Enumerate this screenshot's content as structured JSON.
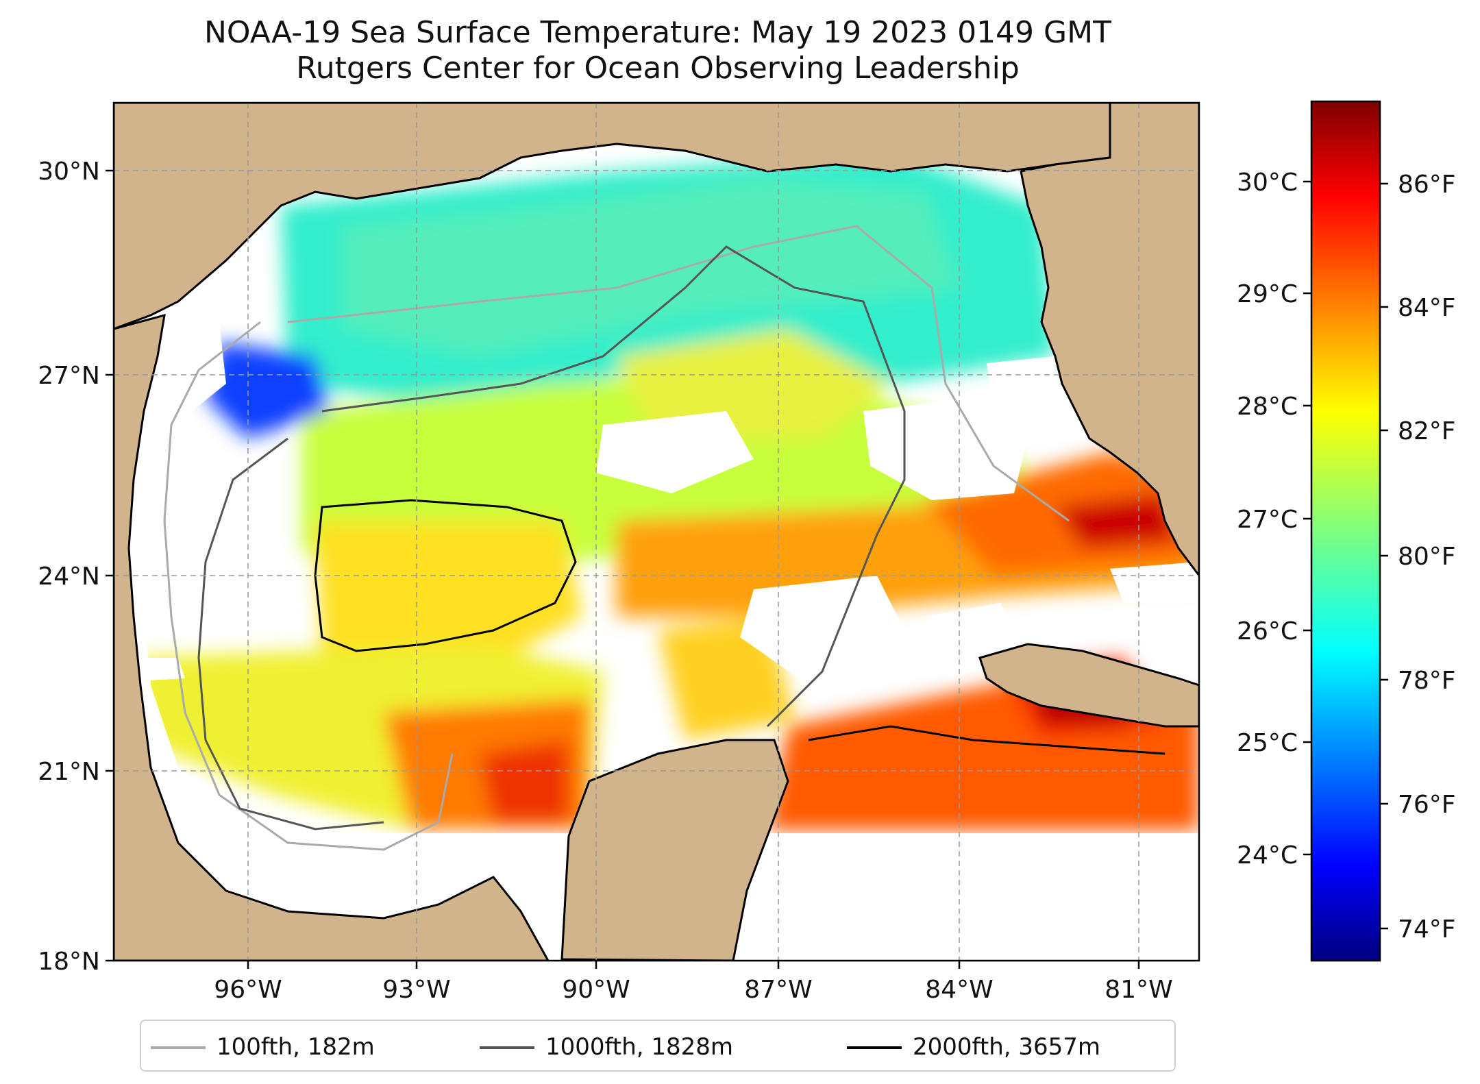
{
  "title": {
    "line1": "NOAA-19 Sea Surface Temperature: May 19 2023 0149 GMT",
    "line2": "Rutgers Center for Ocean Observing Leadership"
  },
  "map": {
    "lat_labels": [
      "18°N",
      "21°N",
      "24°N",
      "27°N",
      "30°N"
    ],
    "lon_labels": [
      "96°W",
      "93°W",
      "90°W",
      "87°W",
      "84°W",
      "81°W"
    ],
    "land_color": "#d2b48c",
    "nodata_color": "#ffffff",
    "warm_color": "#ff5a00",
    "cool_color": "#33eecc"
  },
  "colorbar": {
    "celsius_labels": [
      "30°C",
      "29°C",
      "28°C",
      "27°C",
      "26°C",
      "25°C",
      "24°C"
    ],
    "fahrenheit_labels": [
      "86°F",
      "84°F",
      "82°F",
      "80°F",
      "78°F",
      "76°F",
      "74°F"
    ],
    "colormap": "jet",
    "range_c": [
      23.0,
      30.7
    ]
  },
  "legend": {
    "items": [
      {
        "label": "100fth, 182m",
        "color": "#aaaaaa"
      },
      {
        "label": "1000fth, 1828m",
        "color": "#555555"
      },
      {
        "label": "2000fth, 3657m",
        "color": "#000000"
      }
    ]
  }
}
